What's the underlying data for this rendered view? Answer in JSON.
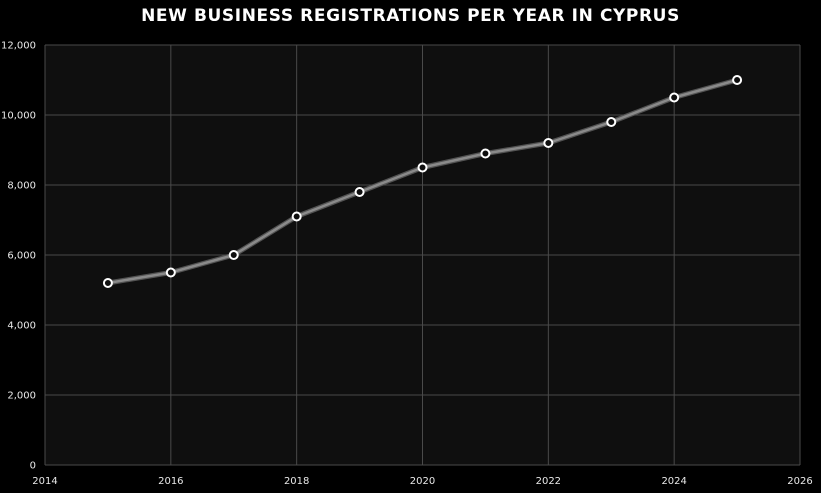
{
  "chart_data": {
    "type": "line",
    "title": "NEW BUSINESS REGISTRATIONS PER YEAR IN CYPRUS",
    "xlabel": "",
    "ylabel": "",
    "x": [
      2015,
      2016,
      2017,
      2018,
      2019,
      2020,
      2021,
      2022,
      2023,
      2024,
      2025
    ],
    "series": [
      {
        "values": [
          5200,
          5500,
          6000,
          7100,
          7800,
          8500,
          8900,
          9200,
          9800,
          10500,
          11000
        ]
      }
    ],
    "xlim": [
      2014,
      2026
    ],
    "ylim": [
      0,
      12000
    ],
    "xticks": [
      2014,
      2016,
      2018,
      2020,
      2022,
      2024,
      2026
    ],
    "yticks": [
      0,
      2000,
      4000,
      6000,
      8000,
      10000,
      12000
    ],
    "xtick_labels": [
      "2014",
      "2016",
      "2018",
      "2020",
      "2022",
      "2024",
      "2026"
    ],
    "ytick_labels": [
      "0",
      "2,000",
      "4,000",
      "6,000",
      "8,000",
      "10,000",
      "12,000"
    ],
    "grid": true,
    "legend": "none",
    "colors": {
      "background": "#000000",
      "plot_background": "#0f0f0f",
      "grid": "#4a4a4a",
      "line": "#8a8a8a",
      "marker_fill": "#0f0f0f",
      "marker_stroke": "#ffffff",
      "text": "#ffffff"
    }
  }
}
